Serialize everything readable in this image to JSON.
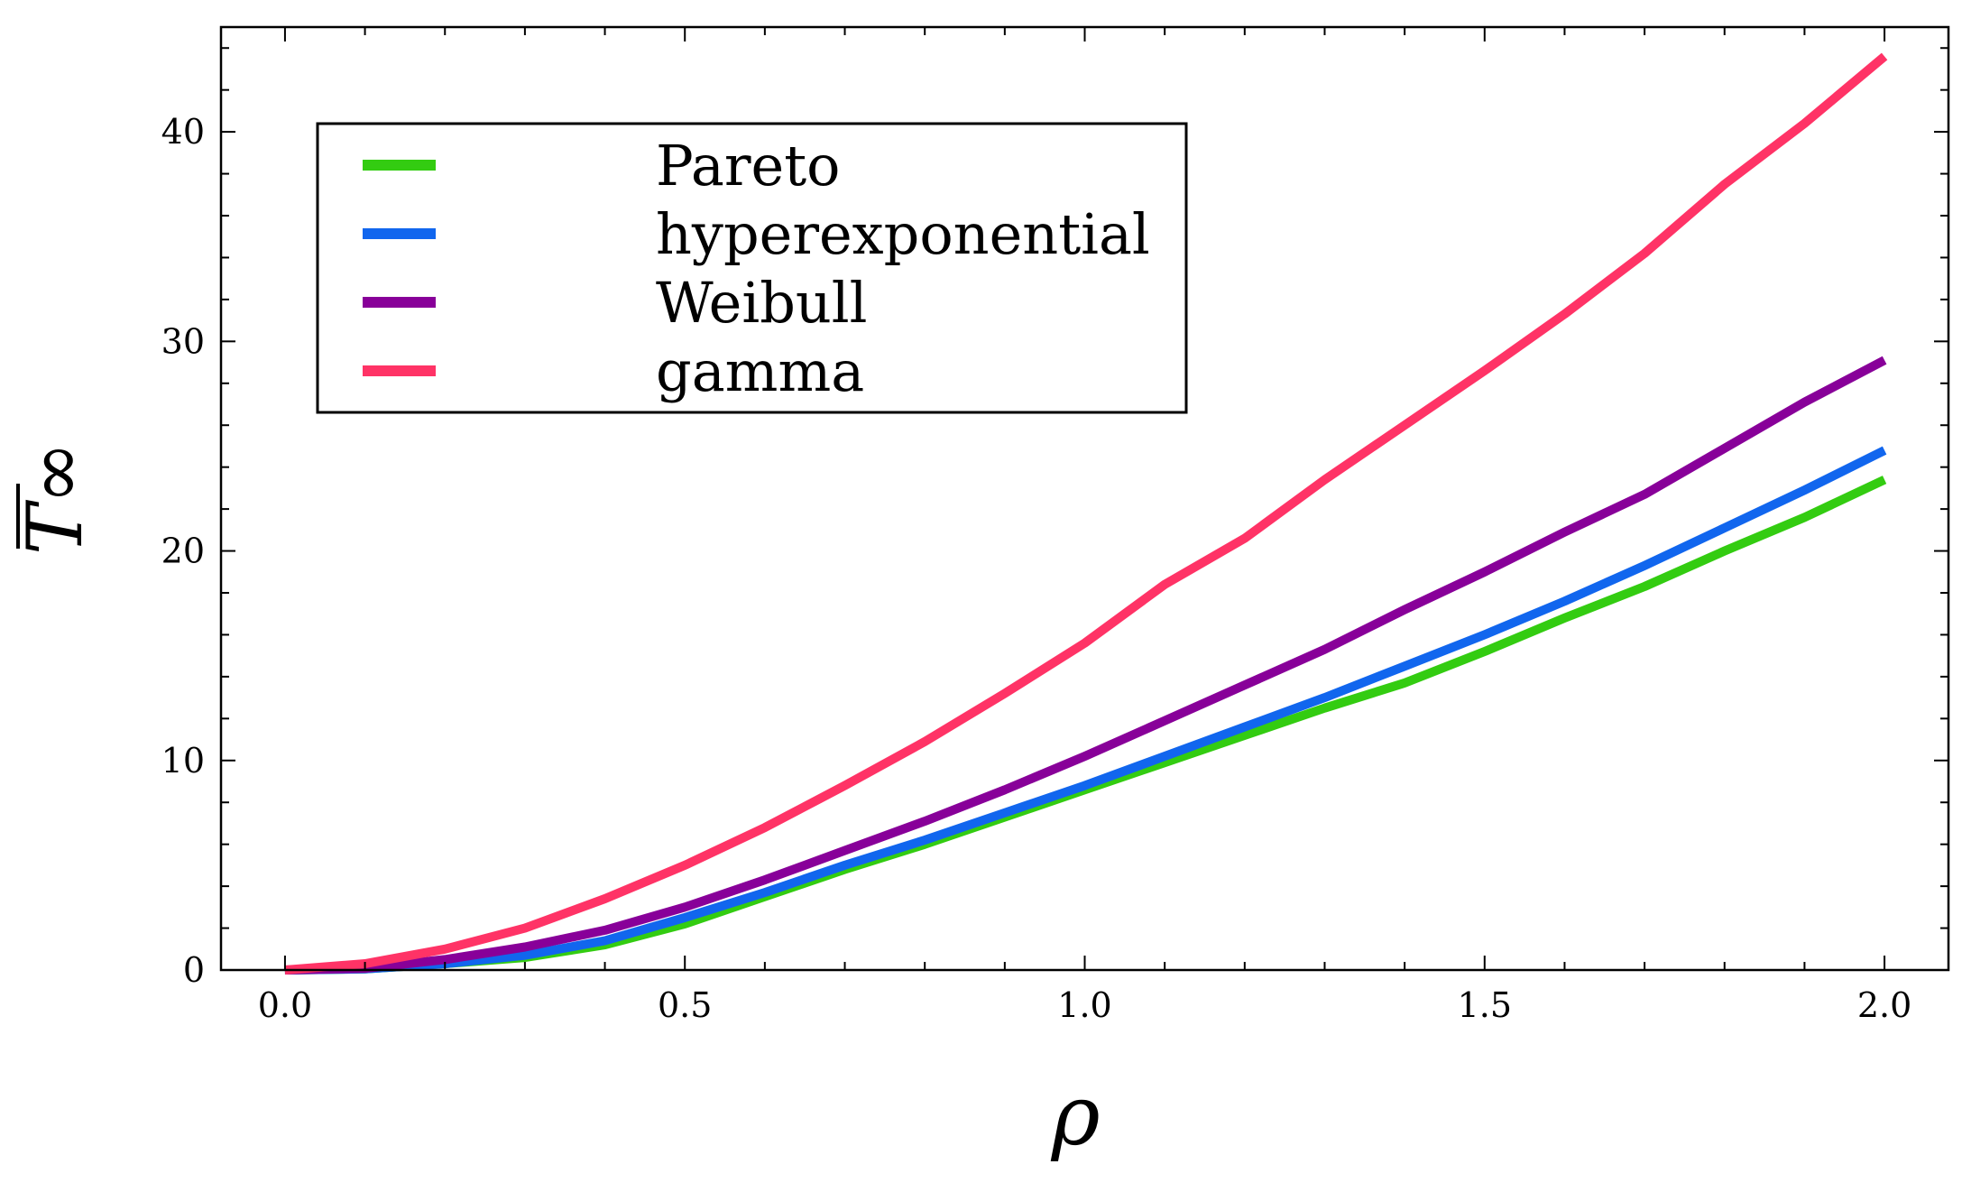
{
  "chart_data": {
    "type": "line",
    "title": "",
    "xlabel": "ρ",
    "ylabel": "T∞",
    "ylabel_overbar": true,
    "xlim": [
      -0.08,
      2.08
    ],
    "ylim": [
      0,
      45
    ],
    "x_ticks": [
      0.0,
      0.5,
      1.0,
      1.5,
      2.0
    ],
    "x_tick_labels": [
      "0.0",
      "0.5",
      "1.0",
      "1.5",
      "2.0"
    ],
    "y_ticks": [
      0,
      10,
      20,
      30,
      40
    ],
    "y_tick_labels": [
      "0",
      "10",
      "20",
      "30",
      "40"
    ],
    "grid": false,
    "legend_position": "top-left",
    "x": [
      0.0,
      0.1,
      0.2,
      0.3,
      0.4,
      0.5,
      0.6,
      0.7,
      0.8,
      0.9,
      1.0,
      1.1,
      1.2,
      1.3,
      1.4,
      1.5,
      1.6,
      1.7,
      1.8,
      1.9,
      2.0
    ],
    "series": [
      {
        "name": "Pareto",
        "color": "#33cc11",
        "values": [
          0.0,
          0.05,
          0.3,
          0.6,
          1.2,
          2.2,
          3.5,
          4.8,
          6.0,
          7.3,
          8.6,
          9.9,
          11.2,
          12.5,
          13.7,
          15.2,
          16.8,
          18.3,
          20.0,
          21.6,
          23.4
        ]
      },
      {
        "name": "hyperexponential",
        "color": "#1166ee",
        "values": [
          0.0,
          0.05,
          0.3,
          0.7,
          1.4,
          2.5,
          3.7,
          5.0,
          6.2,
          7.5,
          8.8,
          10.2,
          11.6,
          13.0,
          14.5,
          16.0,
          17.6,
          19.3,
          21.1,
          22.9,
          24.8
        ]
      },
      {
        "name": "Weibull",
        "color": "#880099",
        "values": [
          0.0,
          0.08,
          0.5,
          1.1,
          1.9,
          3.0,
          4.3,
          5.7,
          7.1,
          8.6,
          10.2,
          11.9,
          13.6,
          15.3,
          17.2,
          19.0,
          20.9,
          22.7,
          24.9,
          27.1,
          29.1
        ]
      },
      {
        "name": "gamma",
        "color": "#ff3366",
        "values": [
          0.0,
          0.3,
          1.0,
          2.0,
          3.4,
          5.0,
          6.8,
          8.8,
          10.9,
          13.2,
          15.6,
          18.4,
          20.6,
          23.4,
          26.0,
          28.6,
          31.3,
          34.2,
          37.5,
          40.4,
          43.6
        ]
      }
    ]
  }
}
